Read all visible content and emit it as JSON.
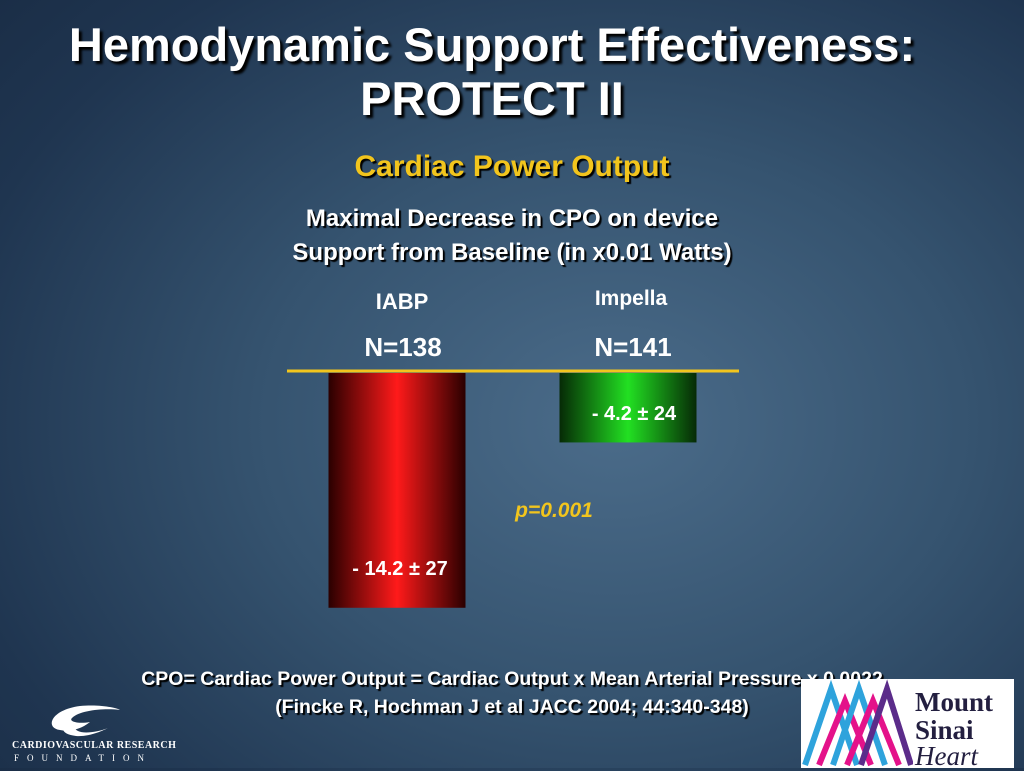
{
  "slide": {
    "title": "Hemodynamic Support Effectiveness:\nPROTECT II",
    "subtitle": "Cardiac Power Output",
    "footer_line1": "CPO= Cardiac Power Output = Cardiac Output x Mean Arterial Pressure x 0.0022",
    "footer_line2": "(Fincke R, Hochman J et al  JACC 2004; 44:340-348)"
  },
  "chart_data": {
    "type": "bar",
    "title": "Maximal Decrease in CPO on device\nSupport from Baseline (in x0.01 Watts)",
    "categories": [
      "IABP",
      "Impella"
    ],
    "n_labels": [
      "N=138",
      "N=141"
    ],
    "values": [
      -14.2,
      -4.2
    ],
    "data_labels": [
      "- 14.2 ± 27",
      "- 4.2 ± 24"
    ],
    "colors": [
      "#ff1a1a",
      "#22e022"
    ],
    "annotation": "p=0.001",
    "ylim": [
      -15,
      0
    ],
    "grid": false,
    "legend": "none"
  },
  "logos": {
    "crf_line1": "CARDIOVASCULAR RESEARCH",
    "crf_line2": "FOUNDATION",
    "mount_sinai_line1": "Mount",
    "mount_sinai_line2": "Sinai",
    "mount_sinai_line3": "Heart"
  }
}
